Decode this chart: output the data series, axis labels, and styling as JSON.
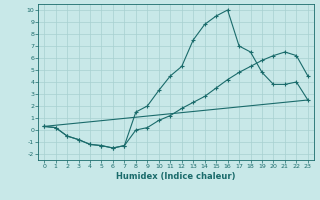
{
  "title": "",
  "xlabel": "Humidex (Indice chaleur)",
  "bg_color": "#c8e8e8",
  "grid_color": "#a8d0d0",
  "line_color": "#1a6b6b",
  "xlim": [
    -0.5,
    23.5
  ],
  "ylim": [
    -2.5,
    10.5
  ],
  "xticks": [
    0,
    1,
    2,
    3,
    4,
    5,
    6,
    7,
    8,
    9,
    10,
    11,
    12,
    13,
    14,
    15,
    16,
    17,
    18,
    19,
    20,
    21,
    22,
    23
  ],
  "yticks": [
    -2,
    -1,
    0,
    1,
    2,
    3,
    4,
    5,
    6,
    7,
    8,
    9,
    10
  ],
  "line1_x": [
    0,
    1,
    2,
    3,
    4,
    5,
    6,
    7,
    8,
    9,
    10,
    11,
    12,
    13,
    14,
    15,
    16,
    17,
    18,
    19,
    20,
    21,
    22,
    23
  ],
  "line1_y": [
    0.3,
    0.2,
    -0.5,
    -0.8,
    -1.2,
    -1.3,
    -1.5,
    -1.3,
    1.5,
    2.0,
    3.3,
    4.5,
    5.3,
    7.5,
    8.8,
    9.5,
    10.0,
    7.0,
    6.5,
    4.8,
    3.8,
    3.8,
    4.0,
    2.5
  ],
  "line2_x": [
    0,
    1,
    2,
    3,
    4,
    5,
    6,
    7,
    8,
    9,
    10,
    11,
    12,
    13,
    14,
    15,
    16,
    17,
    18,
    19,
    20,
    21,
    22,
    23
  ],
  "line2_y": [
    0.3,
    0.2,
    -0.5,
    -0.8,
    -1.2,
    -1.3,
    -1.5,
    -1.3,
    0.0,
    0.2,
    0.8,
    1.2,
    1.8,
    2.3,
    2.8,
    3.5,
    4.2,
    4.8,
    5.3,
    5.8,
    6.2,
    6.5,
    6.2,
    4.5
  ],
  "line3_x": [
    0,
    23
  ],
  "line3_y": [
    0.3,
    2.5
  ]
}
